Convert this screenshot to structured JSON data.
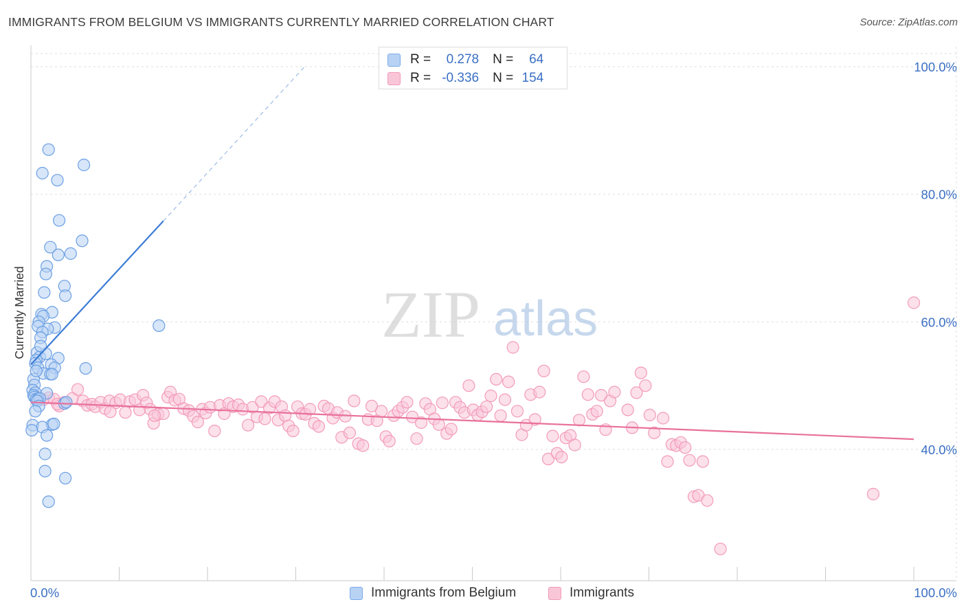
{
  "header": {
    "title": "IMMIGRANTS FROM BELGIUM VS IMMIGRANTS CURRENTLY MARRIED CORRELATION CHART",
    "source": "Source: ZipAtlas.com"
  },
  "watermark": {
    "zip": "ZIP",
    "atlas": "atlas"
  },
  "stats": [
    {
      "r_label": "R =",
      "r_value": "0.278",
      "n_label": "N =",
      "n_value": "64",
      "color": "#7aa9e8",
      "fill": "#b8d2f4"
    },
    {
      "r_label": "R =",
      "r_value": "-0.336",
      "n_label": "N =",
      "n_value": "154",
      "color": "#f09ab9",
      "fill": "#f9c6d8"
    }
  ],
  "chart_data": {
    "type": "scatter",
    "title": "IMMIGRANTS FROM BELGIUM VS IMMIGRANTS CURRENTLY MARRIED CORRELATION CHART",
    "ylabel": "Currently Married",
    "xlim": [
      0,
      100
    ],
    "ylim": [
      20,
      100
    ],
    "x_tick_labels": [
      "0.0%",
      "100.0%"
    ],
    "y_tick_values": [
      40,
      60,
      80,
      100
    ],
    "y_tick_labels": [
      "40.0%",
      "60.0%",
      "80.0%",
      "100.0%"
    ],
    "grid": true,
    "legend_placement": "bottom",
    "series": [
      {
        "name": "Immigrants from Belgium",
        "color": "#6a9fe3",
        "fill": "#b8d2f4",
        "trend": {
          "x": [
            0,
            15
          ],
          "y": [
            53.3,
            75.8
          ],
          "extend_to_x": 31,
          "extend_to_y": 100
        },
        "points": [
          [
            2.0,
            87.0
          ],
          [
            1.3,
            83.3
          ],
          [
            6.0,
            84.6
          ],
          [
            3.0,
            82.2
          ],
          [
            3.2,
            75.9
          ],
          [
            2.2,
            71.7
          ],
          [
            5.8,
            72.7
          ],
          [
            3.1,
            70.5
          ],
          [
            4.5,
            70.7
          ],
          [
            1.8,
            68.7
          ],
          [
            1.7,
            67.5
          ],
          [
            3.8,
            65.6
          ],
          [
            1.5,
            64.6
          ],
          [
            3.9,
            64.1
          ],
          [
            2.4,
            61.5
          ],
          [
            1.2,
            61.2
          ],
          [
            1.4,
            60.9
          ],
          [
            0.9,
            60.0
          ],
          [
            0.8,
            59.3
          ],
          [
            2.7,
            59.1
          ],
          [
            1.9,
            58.9
          ],
          [
            14.5,
            59.4
          ],
          [
            1.3,
            58.4
          ],
          [
            1.1,
            57.5
          ],
          [
            0.7,
            55.2
          ],
          [
            1.0,
            54.5
          ],
          [
            1.7,
            55.0
          ],
          [
            3.1,
            54.3
          ],
          [
            0.6,
            54.0
          ],
          [
            0.5,
            53.5
          ],
          [
            2.3,
            53.3
          ],
          [
            0.8,
            52.8
          ],
          [
            2.7,
            52.8
          ],
          [
            6.2,
            52.7
          ],
          [
            1.4,
            51.9
          ],
          [
            2.2,
            51.8
          ],
          [
            2.4,
            51.8
          ],
          [
            0.3,
            51.0
          ],
          [
            0.4,
            50.1
          ],
          [
            0.2,
            49.3
          ],
          [
            0.5,
            48.9
          ],
          [
            1.8,
            48.8
          ],
          [
            0.3,
            48.5
          ],
          [
            0.4,
            48.2
          ],
          [
            0.6,
            47.9
          ],
          [
            0.8,
            47.9
          ],
          [
            1.0,
            48.0
          ],
          [
            0.7,
            47.6
          ],
          [
            3.8,
            47.2
          ],
          [
            4.0,
            47.4
          ],
          [
            0.9,
            46.8
          ],
          [
            0.5,
            46.0
          ],
          [
            0.2,
            43.8
          ],
          [
            2.4,
            43.9
          ],
          [
            1.3,
            43.5
          ],
          [
            1.8,
            42.2
          ],
          [
            1.6,
            39.3
          ],
          [
            1.6,
            36.6
          ],
          [
            3.9,
            35.5
          ],
          [
            2.0,
            31.8
          ],
          [
            0.1,
            43.0
          ],
          [
            0.6,
            52.3
          ],
          [
            1.1,
            56.2
          ],
          [
            2.6,
            44.0
          ]
        ]
      },
      {
        "name": "Immigrants",
        "color": "#f29bb9",
        "fill": "#f9c6d8",
        "trend": {
          "x": [
            0,
            100
          ],
          "y": [
            47.4,
            41.6
          ]
        },
        "points": [
          [
            0.7,
            48.2
          ],
          [
            1.4,
            47.8
          ],
          [
            2.0,
            48.1
          ],
          [
            2.6,
            47.9
          ],
          [
            3.2,
            46.8
          ],
          [
            3.8,
            47.4
          ],
          [
            4.7,
            48.0
          ],
          [
            5.3,
            49.4
          ],
          [
            5.9,
            47.6
          ],
          [
            6.4,
            46.9
          ],
          [
            6.9,
            47.1
          ],
          [
            7.3,
            46.7
          ],
          [
            7.9,
            47.4
          ],
          [
            8.4,
            46.4
          ],
          [
            8.9,
            47.6
          ],
          [
            9.6,
            47.3
          ],
          [
            10.1,
            47.8
          ],
          [
            10.7,
            45.8
          ],
          [
            11.2,
            47.5
          ],
          [
            11.8,
            47.8
          ],
          [
            12.3,
            46.2
          ],
          [
            12.7,
            48.5
          ],
          [
            13.1,
            47.3
          ],
          [
            13.5,
            46.3
          ],
          [
            13.9,
            44.1
          ],
          [
            14.4,
            45.5
          ],
          [
            15.0,
            45.6
          ],
          [
            15.5,
            48.2
          ],
          [
            15.8,
            49.0
          ],
          [
            16.3,
            47.7
          ],
          [
            16.8,
            47.9
          ],
          [
            17.3,
            46.4
          ],
          [
            17.9,
            46.1
          ],
          [
            18.4,
            45.2
          ],
          [
            18.9,
            44.3
          ],
          [
            19.4,
            46.3
          ],
          [
            19.8,
            45.7
          ],
          [
            20.3,
            46.6
          ],
          [
            20.8,
            42.9
          ],
          [
            21.4,
            46.9
          ],
          [
            21.9,
            45.6
          ],
          [
            22.4,
            47.2
          ],
          [
            22.9,
            46.7
          ],
          [
            23.5,
            47.0
          ],
          [
            24.0,
            46.3
          ],
          [
            24.6,
            43.8
          ],
          [
            25.1,
            46.6
          ],
          [
            25.6,
            45.1
          ],
          [
            26.1,
            47.5
          ],
          [
            26.5,
            44.8
          ],
          [
            27.0,
            46.5
          ],
          [
            27.6,
            47.5
          ],
          [
            28.0,
            44.6
          ],
          [
            28.4,
            46.7
          ],
          [
            28.8,
            45.3
          ],
          [
            29.2,
            43.7
          ],
          [
            29.7,
            42.9
          ],
          [
            30.2,
            46.7
          ],
          [
            30.7,
            45.6
          ],
          [
            31.1,
            45.5
          ],
          [
            31.6,
            46.3
          ],
          [
            32.1,
            44.1
          ],
          [
            32.6,
            43.6
          ],
          [
            33.2,
            46.8
          ],
          [
            33.7,
            46.4
          ],
          [
            34.2,
            44.9
          ],
          [
            34.7,
            45.8
          ],
          [
            35.2,
            41.9
          ],
          [
            35.6,
            45.2
          ],
          [
            36.1,
            42.6
          ],
          [
            36.6,
            47.6
          ],
          [
            37.1,
            40.9
          ],
          [
            37.6,
            40.6
          ],
          [
            38.2,
            44.7
          ],
          [
            38.6,
            46.8
          ],
          [
            39.2,
            44.5
          ],
          [
            39.7,
            46.0
          ],
          [
            40.2,
            42.0
          ],
          [
            40.6,
            41.3
          ],
          [
            41.1,
            45.3
          ],
          [
            41.6,
            46.0
          ],
          [
            42.1,
            46.6
          ],
          [
            42.6,
            47.4
          ],
          [
            43.2,
            45.1
          ],
          [
            43.7,
            41.7
          ],
          [
            44.2,
            44.2
          ],
          [
            44.7,
            47.2
          ],
          [
            45.2,
            46.3
          ],
          [
            45.7,
            44.8
          ],
          [
            46.2,
            43.9
          ],
          [
            46.6,
            47.3
          ],
          [
            47.1,
            42.5
          ],
          [
            47.6,
            43.2
          ],
          [
            48.1,
            47.4
          ],
          [
            48.6,
            46.6
          ],
          [
            49.1,
            45.8
          ],
          [
            49.6,
            50.0
          ],
          [
            50.1,
            46.2
          ],
          [
            50.6,
            45.4
          ],
          [
            51.1,
            45.9
          ],
          [
            51.6,
            46.7
          ],
          [
            52.1,
            48.4
          ],
          [
            52.7,
            51.0
          ],
          [
            53.2,
            45.3
          ],
          [
            53.7,
            47.8
          ],
          [
            54.1,
            50.6
          ],
          [
            54.6,
            56.0
          ],
          [
            55.1,
            46.0
          ],
          [
            55.6,
            42.3
          ],
          [
            56.1,
            43.8
          ],
          [
            56.6,
            48.6
          ],
          [
            57.1,
            44.7
          ],
          [
            57.6,
            49.0
          ],
          [
            58.1,
            52.3
          ],
          [
            58.6,
            38.5
          ],
          [
            59.1,
            42.1
          ],
          [
            59.6,
            39.4
          ],
          [
            60.1,
            38.8
          ],
          [
            60.6,
            41.8
          ],
          [
            61.1,
            42.2
          ],
          [
            61.6,
            40.7
          ],
          [
            62.1,
            44.6
          ],
          [
            62.6,
            51.4
          ],
          [
            63.1,
            48.6
          ],
          [
            63.6,
            45.5
          ],
          [
            64.1,
            46.0
          ],
          [
            64.6,
            48.5
          ],
          [
            65.1,
            43.1
          ],
          [
            65.6,
            47.6
          ],
          [
            66.1,
            49.0
          ],
          [
            67.6,
            46.2
          ],
          [
            68.1,
            43.4
          ],
          [
            68.6,
            48.9
          ],
          [
            69.1,
            52.0
          ],
          [
            69.6,
            50.0
          ],
          [
            70.1,
            45.4
          ],
          [
            70.6,
            42.6
          ],
          [
            71.6,
            44.9
          ],
          [
            72.1,
            38.1
          ],
          [
            72.6,
            40.8
          ],
          [
            73.1,
            40.6
          ],
          [
            73.6,
            41.1
          ],
          [
            74.1,
            40.3
          ],
          [
            74.6,
            38.3
          ],
          [
            75.1,
            32.6
          ],
          [
            75.6,
            32.8
          ],
          [
            76.1,
            38.1
          ],
          [
            76.6,
            32.0
          ],
          [
            78.1,
            24.4
          ],
          [
            95.4,
            33.0
          ],
          [
            100.0,
            63.0
          ],
          [
            3.0,
            47.1
          ],
          [
            9.0,
            45.9
          ],
          [
            14.0,
            45.3
          ]
        ]
      }
    ]
  }
}
